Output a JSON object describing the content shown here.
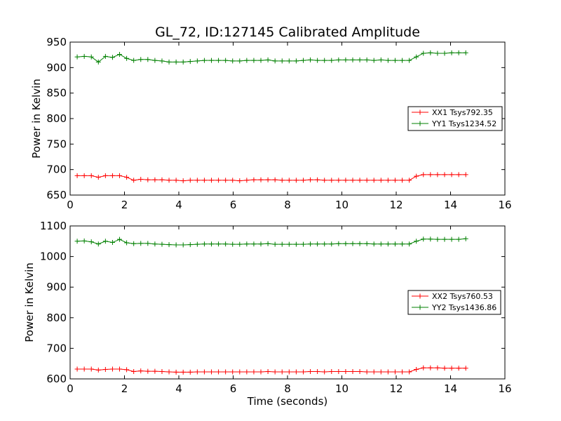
{
  "chart_data": [
    {
      "type": "line",
      "title": "GL_72, ID:127145 Calibrated Amplitude",
      "xlabel": "",
      "ylabel": "Power in Kelvin",
      "xlim": [
        0,
        16
      ],
      "ylim": [
        650,
        950
      ],
      "xticks": [
        0,
        2,
        4,
        6,
        8,
        10,
        12,
        14,
        16
      ],
      "yticks": [
        650,
        700,
        750,
        800,
        850,
        900,
        950
      ],
      "grid": false,
      "legend": "center-right",
      "x": [
        0.26,
        0.52,
        0.78,
        1.04,
        1.3,
        1.56,
        1.82,
        2.08,
        2.34,
        2.6,
        2.86,
        3.12,
        3.38,
        3.64,
        3.9,
        4.16,
        4.42,
        4.68,
        4.94,
        5.2,
        5.46,
        5.72,
        5.98,
        6.24,
        6.5,
        6.76,
        7.02,
        7.28,
        7.54,
        7.8,
        8.06,
        8.32,
        8.58,
        8.84,
        9.1,
        9.36,
        9.62,
        9.88,
        10.14,
        10.4,
        10.66,
        10.92,
        11.18,
        11.44,
        11.7,
        11.96,
        12.22,
        12.48,
        12.74,
        13.0,
        13.26,
        13.52,
        13.78,
        14.04,
        14.3,
        14.56
      ],
      "series": [
        {
          "name": "XX1 Tsys792.35",
          "color": "#ff0000",
          "values": [
            688,
            688,
            688,
            685,
            688,
            688,
            688,
            685,
            679,
            681,
            680,
            680,
            680,
            679,
            679,
            678,
            679,
            679,
            679,
            679,
            679,
            679,
            679,
            678,
            679,
            680,
            680,
            680,
            680,
            679,
            679,
            679,
            679,
            680,
            680,
            679,
            679,
            679,
            679,
            679,
            679,
            679,
            679,
            679,
            679,
            679,
            679,
            679,
            687,
            690,
            690,
            690,
            690,
            690,
            690,
            690
          ]
        },
        {
          "name": "YY1 Tsys1234.52",
          "color": "#008000",
          "values": [
            921,
            922,
            921,
            911,
            922,
            920,
            926,
            918,
            914,
            916,
            916,
            914,
            913,
            911,
            911,
            911,
            912,
            913,
            914,
            914,
            914,
            914,
            913,
            913,
            914,
            914,
            914,
            915,
            913,
            913,
            913,
            913,
            914,
            915,
            914,
            914,
            914,
            915,
            915,
            915,
            915,
            915,
            914,
            915,
            914,
            914,
            914,
            914,
            921,
            928,
            929,
            928,
            928,
            929,
            929,
            929
          ]
        }
      ]
    },
    {
      "type": "line",
      "title": "",
      "xlabel": "Time (seconds)",
      "ylabel": "Power in Kelvin",
      "xlim": [
        0,
        16
      ],
      "ylim": [
        600,
        1100
      ],
      "xticks": [
        0,
        2,
        4,
        6,
        8,
        10,
        12,
        14,
        16
      ],
      "yticks": [
        600,
        700,
        800,
        900,
        1000,
        1100
      ],
      "grid": false,
      "legend": "center-right",
      "x": [
        0.26,
        0.52,
        0.78,
        1.04,
        1.3,
        1.56,
        1.82,
        2.08,
        2.34,
        2.6,
        2.86,
        3.12,
        3.38,
        3.64,
        3.9,
        4.16,
        4.42,
        4.68,
        4.94,
        5.2,
        5.46,
        5.72,
        5.98,
        6.24,
        6.5,
        6.76,
        7.02,
        7.28,
        7.54,
        7.8,
        8.06,
        8.32,
        8.58,
        8.84,
        9.1,
        9.36,
        9.62,
        9.88,
        10.14,
        10.4,
        10.66,
        10.92,
        11.18,
        11.44,
        11.7,
        11.96,
        12.22,
        12.48,
        12.74,
        13.0,
        13.26,
        13.52,
        13.78,
        14.04,
        14.3,
        14.56
      ],
      "series": [
        {
          "name": "XX2 Tsys760.53",
          "color": "#ff0000",
          "values": [
            632,
            632,
            632,
            629,
            631,
            632,
            632,
            630,
            624,
            626,
            625,
            625,
            624,
            623,
            622,
            622,
            622,
            623,
            623,
            623,
            623,
            623,
            623,
            623,
            623,
            623,
            623,
            624,
            623,
            623,
            623,
            623,
            623,
            624,
            624,
            623,
            624,
            624,
            624,
            624,
            624,
            623,
            623,
            623,
            623,
            623,
            623,
            623,
            631,
            636,
            636,
            636,
            635,
            635,
            635,
            635
          ]
        },
        {
          "name": "YY2 Tsys1436.86",
          "color": "#008000",
          "values": [
            1050,
            1051,
            1048,
            1041,
            1050,
            1046,
            1056,
            1045,
            1042,
            1043,
            1043,
            1041,
            1040,
            1039,
            1038,
            1038,
            1039,
            1040,
            1041,
            1041,
            1041,
            1041,
            1040,
            1040,
            1041,
            1041,
            1041,
            1042,
            1040,
            1040,
            1040,
            1040,
            1040,
            1041,
            1041,
            1041,
            1041,
            1042,
            1042,
            1042,
            1042,
            1042,
            1041,
            1041,
            1041,
            1041,
            1041,
            1041,
            1050,
            1057,
            1057,
            1056,
            1056,
            1056,
            1056,
            1058
          ]
        }
      ]
    }
  ]
}
